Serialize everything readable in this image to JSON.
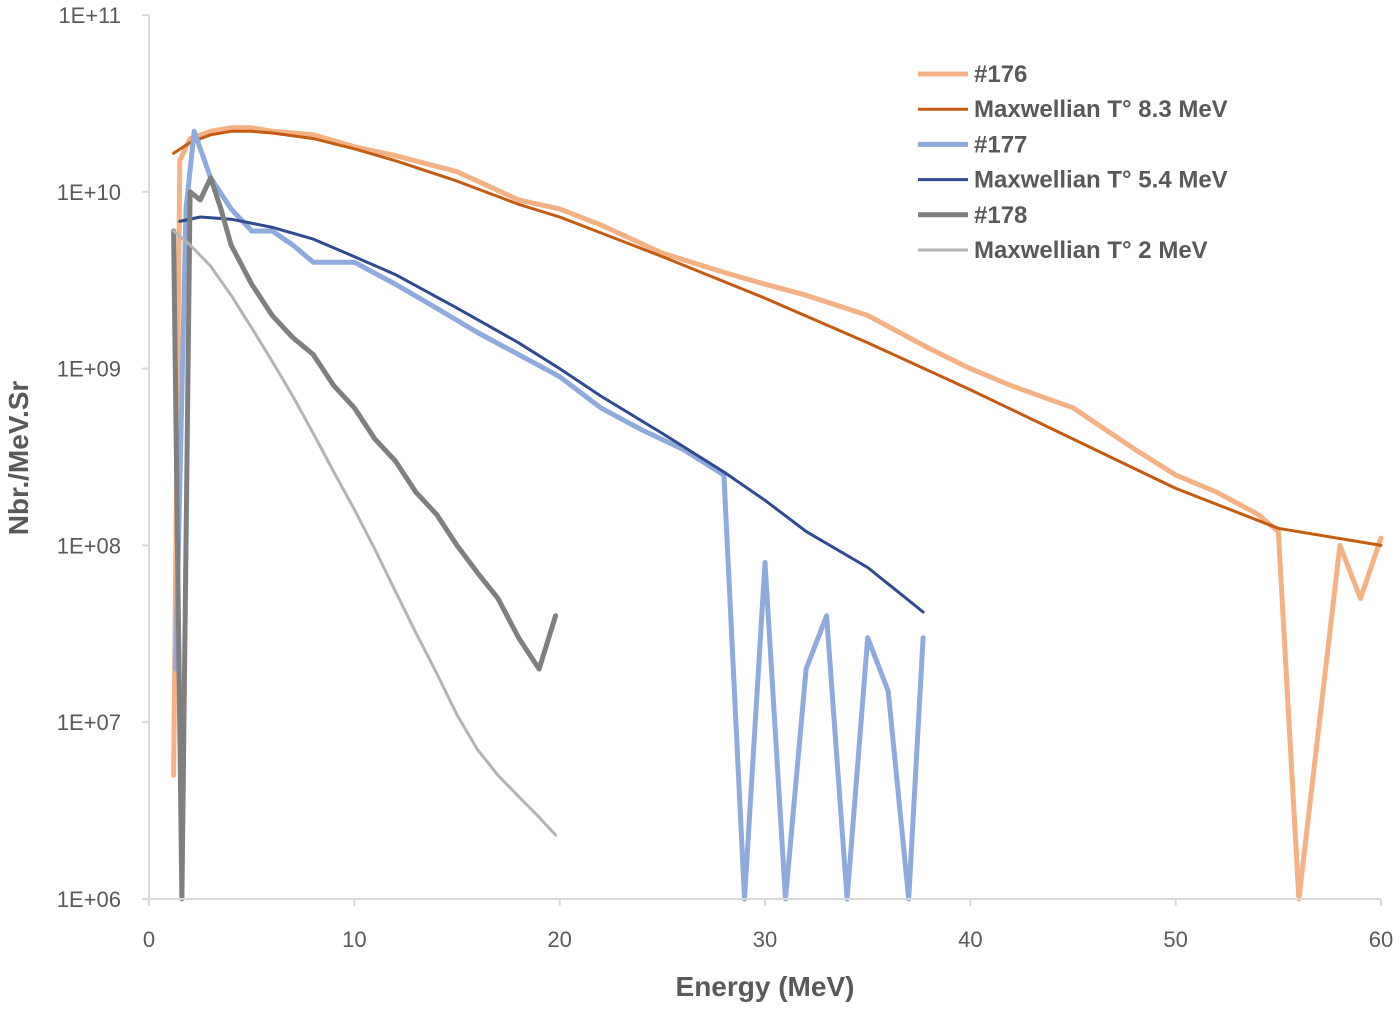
{
  "chart_data": {
    "type": "line",
    "title": "",
    "xlabel": "Energy (MeV)",
    "ylabel": "Nbr./MeV.Sr",
    "xlim": [
      0,
      60
    ],
    "ylim": [
      1000000.0,
      100000000000.0
    ],
    "yscale": "log",
    "grid": false,
    "legend_position": "top-right",
    "x_ticks": [
      0,
      10,
      20,
      30,
      40,
      50,
      60
    ],
    "x_tick_labels": [
      "0",
      "10",
      "20",
      "30",
      "40",
      "50",
      "60"
    ],
    "y_ticks": [
      1000000.0,
      10000000.0,
      100000000.0,
      1000000000.0,
      10000000000.0,
      100000000000.0
    ],
    "y_tick_labels": [
      "1E+06",
      "1E+07",
      "1E+08",
      "1E+09",
      "1E+10",
      "1E+11"
    ],
    "series": [
      {
        "name": "#176",
        "kind": "measured",
        "color": "#F4B183",
        "x": [
          1.2,
          1.5,
          2.0,
          3.0,
          4.0,
          5.0,
          6.0,
          8.0,
          10.0,
          12.0,
          15.0,
          18.0,
          20.0,
          22.0,
          25.0,
          28.0,
          30.0,
          32.0,
          35.0,
          38.0,
          40.0,
          42.0,
          45.0,
          48.0,
          50.0,
          52.0,
          54.0,
          55.0,
          56.0,
          57.0,
          58.0,
          59.0,
          60.0
        ],
        "y": [
          5000000.0,
          15000000000.0,
          20000000000.0,
          22000000000.0,
          23000000000.0,
          23000000000.0,
          22000000000.0,
          21000000000.0,
          18000000000.0,
          16000000000.0,
          13000000000.0,
          9000000000.0,
          8000000000.0,
          6500000000.0,
          4500000000.0,
          3500000000.0,
          3000000000.0,
          2600000000.0,
          2000000000.0,
          1300000000.0,
          1000000000.0,
          800000000.0,
          600000000.0,
          350000000.0,
          250000000.0,
          200000000.0,
          150000000.0,
          120000000.0,
          1000000.0,
          10000000.0,
          100000000.0,
          50000000.0,
          110000000.0
        ]
      },
      {
        "name": "Maxwellian T° 8.3 MeV",
        "kind": "fit",
        "color": "#C55A11",
        "x": [
          1.2,
          2.0,
          3.0,
          4.0,
          5.0,
          6.0,
          8.0,
          10.0,
          12.0,
          15.0,
          18.0,
          20.0,
          25.0,
          30.0,
          35.0,
          40.0,
          45.0,
          50.0,
          55.0,
          60.0
        ],
        "y": [
          16500000000.0,
          19000000000.0,
          21000000000.0,
          22000000000.0,
          22000000000.0,
          21500000000.0,
          20000000000.0,
          17500000000.0,
          15000000000.0,
          11500000000.0,
          8500000000.0,
          7200000000.0,
          4300000000.0,
          2500000000.0,
          1400000000.0,
          760000000.0,
          400000000.0,
          210000000.0,
          125000000.0,
          100000000.0
        ]
      },
      {
        "name": "#177",
        "kind": "measured",
        "color": "#8FAADC",
        "x": [
          1.3,
          1.8,
          2.2,
          3.0,
          4.0,
          5.0,
          6.0,
          7.0,
          8.0,
          10.0,
          12.0,
          14.0,
          16.0,
          18.0,
          20.0,
          22.0,
          24.0,
          26.0,
          28.0,
          29.0,
          30.0,
          31.0,
          32.0,
          33.0,
          34.0,
          35.0,
          36.0,
          37.0,
          37.7
        ],
        "y": [
          20000000.0,
          8000000000.0,
          22000000000.0,
          12000000000.0,
          8000000000.0,
          6000000000.0,
          6000000000.0,
          5000000000.0,
          4000000000.0,
          4000000000.0,
          3000000000.0,
          2200000000.0,
          1600000000.0,
          1200000000.0,
          900000000.0,
          600000000.0,
          450000000.0,
          350000000.0,
          250000000.0,
          1000000.0,
          80000000.0,
          1000000.0,
          20000000.0,
          40000000.0,
          1000000.0,
          30000000.0,
          15000000.0,
          1000000.0,
          30000000.0
        ]
      },
      {
        "name": "Maxwellian T° 5.4 MeV",
        "kind": "fit",
        "color": "#2F4A8F",
        "x": [
          1.5,
          2.5,
          4.0,
          6.0,
          8.0,
          10.0,
          12.0,
          15.0,
          18.0,
          20.0,
          22.0,
          25.0,
          28.0,
          30.0,
          32.0,
          35.0,
          37.7
        ],
        "y": [
          6800000000.0,
          7200000000.0,
          7000000000.0,
          6300000000.0,
          5400000000.0,
          4300000000.0,
          3400000000.0,
          2200000000.0,
          1400000000.0,
          1000000000.0,
          700000000.0,
          430000000.0,
          260000000.0,
          180000000.0,
          120000000.0,
          75000000.0,
          42000000.0
        ]
      },
      {
        "name": "#178",
        "kind": "measured",
        "color": "#7F7F7F",
        "x": [
          1.2,
          1.6,
          2.0,
          2.5,
          3.0,
          3.5,
          4.0,
          5.0,
          6.0,
          7.0,
          8.0,
          9.0,
          10.0,
          11.0,
          12.0,
          13.0,
          14.0,
          15.0,
          16.0,
          17.0,
          18.0,
          19.0,
          19.8
        ],
        "y": [
          6000000000.0,
          1000000.0,
          10000000000.0,
          9000000000.0,
          12000000000.0,
          8000000000.0,
          5000000000.0,
          3000000000.0,
          2000000000.0,
          1500000000.0,
          1200000000.0,
          800000000.0,
          600000000.0,
          400000000.0,
          300000000.0,
          200000000.0,
          150000000.0,
          100000000.0,
          70000000.0,
          50000000.0,
          30000000.0,
          20000000.0,
          40000000.0
        ]
      },
      {
        "name": "Maxwellian T° 2 MeV",
        "kind": "fit",
        "color": "#B4B4B4",
        "x": [
          1.2,
          2.0,
          3.0,
          4.0,
          5.0,
          6.0,
          7.0,
          8.0,
          9.0,
          10.0,
          11.0,
          12.0,
          13.0,
          14.0,
          15.0,
          16.0,
          17.0,
          18.0,
          19.0,
          19.8
        ],
        "y": [
          6000000000.0,
          5000000000.0,
          3800000000.0,
          2600000000.0,
          1700000000.0,
          1100000000.0,
          700000000.0,
          430000000.0,
          260000000.0,
          160000000.0,
          95000000.0,
          55000000.0,
          32000000.0,
          19000000.0,
          11000000.0,
          7000000.0,
          5000000.0,
          3800000.0,
          2900000.0,
          2300000.0
        ]
      }
    ]
  }
}
